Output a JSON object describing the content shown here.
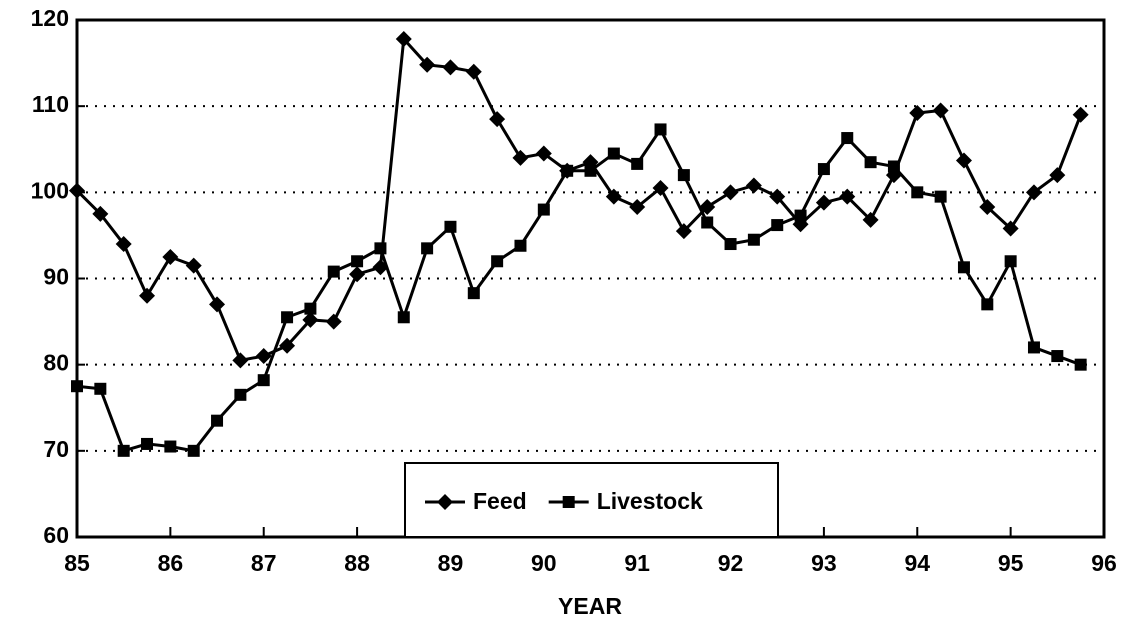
{
  "chart_data": {
    "type": "line",
    "xlabel": "YEAR",
    "x": [
      85,
      85.25,
      85.5,
      85.75,
      86,
      86.25,
      86.5,
      86.75,
      87,
      87.25,
      87.5,
      87.75,
      88,
      88.25,
      88.5,
      88.75,
      89,
      89.25,
      89.5,
      89.75,
      90,
      90.25,
      90.5,
      90.75,
      91,
      91.25,
      91.5,
      91.75,
      92,
      92.25,
      92.5,
      92.75,
      93,
      93.25,
      93.5,
      93.75,
      94,
      94.25,
      94.5,
      94.75,
      95,
      95.25,
      95.5,
      95.75
    ],
    "series": [
      {
        "name": "Feed",
        "color": "#000000",
        "marker": "diamond",
        "values": [
          100.2,
          97.5,
          94,
          88,
          92.5,
          91.5,
          87,
          80.5,
          81,
          82.2,
          85.2,
          85,
          90.5,
          91.3,
          117.8,
          114.8,
          114.5,
          114,
          108.5,
          104,
          104.5,
          102.5,
          103.5,
          99.5,
          98.3,
          100.5,
          95.5,
          98.3,
          100,
          100.8,
          99.5,
          96.3,
          98.8,
          99.5,
          96.8,
          102,
          109.2,
          109.5,
          103.7,
          98.3,
          95.8,
          100,
          102,
          109
        ]
      },
      {
        "name": "Livestock",
        "color": "#000000",
        "marker": "square",
        "values": [
          77.5,
          77.2,
          70,
          70.8,
          70.5,
          70,
          73.5,
          76.5,
          78.2,
          85.5,
          86.5,
          90.8,
          92,
          93.5,
          85.5,
          93.5,
          96,
          88.3,
          92,
          93.8,
          98,
          102.5,
          102.5,
          104.5,
          103.3,
          107.3,
          102,
          96.5,
          94,
          94.5,
          96.2,
          97.3,
          102.7,
          106.3,
          103.5,
          103,
          100,
          99.5,
          91.3,
          87,
          92,
          82,
          81,
          80
        ]
      }
    ],
    "xlim": [
      85,
      96
    ],
    "xticks": [
      85,
      86,
      87,
      88,
      89,
      90,
      91,
      92,
      93,
      94,
      95,
      96
    ],
    "ylim": [
      60,
      120
    ],
    "yticks": [
      60,
      70,
      80,
      90,
      100,
      110,
      120
    ],
    "grid": true,
    "legend": "bottom"
  }
}
